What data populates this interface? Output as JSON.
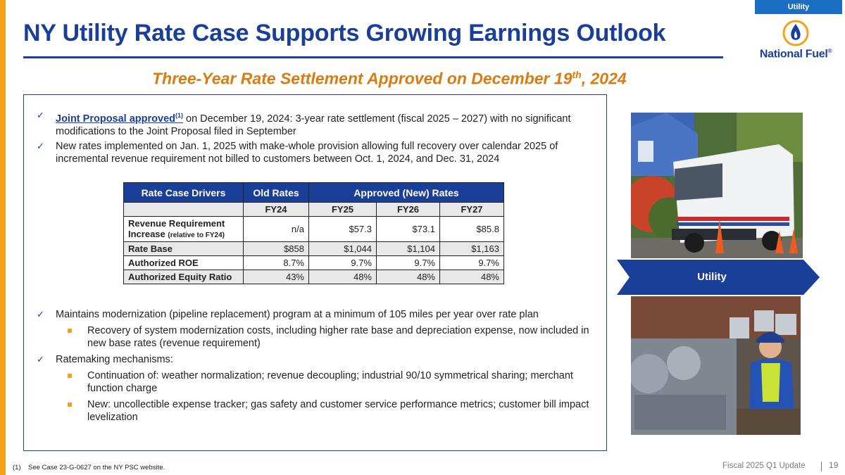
{
  "tag": "Utility",
  "title": "NY Utility Rate Case Supports Growing Earnings Outlook",
  "logo": {
    "name": "National Fuel",
    "mark": "®"
  },
  "subtitle": {
    "main": "Three-Year Rate Settlement Approved on December 19",
    "sup": "th",
    "tail": ", 2024"
  },
  "bullets": {
    "b1": {
      "link": "Joint Proposal approved",
      "sup": "(1)",
      "text": " on December 19, 2024: 3-year rate settlement (fiscal 2025 – 2027) with no significant modifications to the Joint Proposal filed in September"
    },
    "b2": "New rates implemented on Jan. 1, 2025 with make-whole provision allowing full recovery over calendar 2025 of incremental revenue requirement not billed to customers between Oct. 1, 2024, and Dec. 31, 2024",
    "b3": "Maintains modernization (pipeline replacement) program at a minimum of 105 miles per year over rate plan",
    "b3_sub1": "Recovery of system modernization costs, including higher rate base and depreciation expense, now included in new base rates (revenue requirement)",
    "b4": "Ratemaking mechanisms:",
    "b4_sub1": "Continuation of: weather normalization; revenue decoupling; industrial 90/10 symmetrical sharing; merchant function charge",
    "b4_sub2": "New: uncollectible expense tracker; gas safety and customer service performance metrics; customer bill impact levelization"
  },
  "table": {
    "headers": [
      "Rate Case Drivers",
      "Old Rates",
      "Approved (New) Rates"
    ],
    "years": [
      "FY24",
      "FY25",
      "FY26",
      "FY27"
    ],
    "rows": [
      {
        "label": "Revenue Requirement",
        "label2": "Increase",
        "label_small": "(relative to FY24)",
        "values": [
          "n/a",
          "$57.3",
          "$73.1",
          "$85.8"
        ]
      },
      {
        "label": "Rate Base",
        "values": [
          "$858",
          "$1,044",
          "$1,104",
          "$1,163"
        ]
      },
      {
        "label": "Authorized ROE",
        "values": [
          "8.7%",
          "9.7%",
          "9.7%",
          "9.7%"
        ]
      },
      {
        "label": "Authorized Equity Ratio",
        "values": [
          "43%",
          "48%",
          "48%",
          "48%"
        ]
      }
    ]
  },
  "side_label": "Utility",
  "footnote": {
    "num": "(1)",
    "text": "See Case 23-G-0627 on the NY PSC website."
  },
  "footer": {
    "text": "Fiscal 2025 Q1 Update",
    "page": "19"
  },
  "colors": {
    "navy": "#1a3f99",
    "orange": "#f2a11a",
    "accent_orange": "#d97b10",
    "tag_blue": "#1b6ec2"
  }
}
